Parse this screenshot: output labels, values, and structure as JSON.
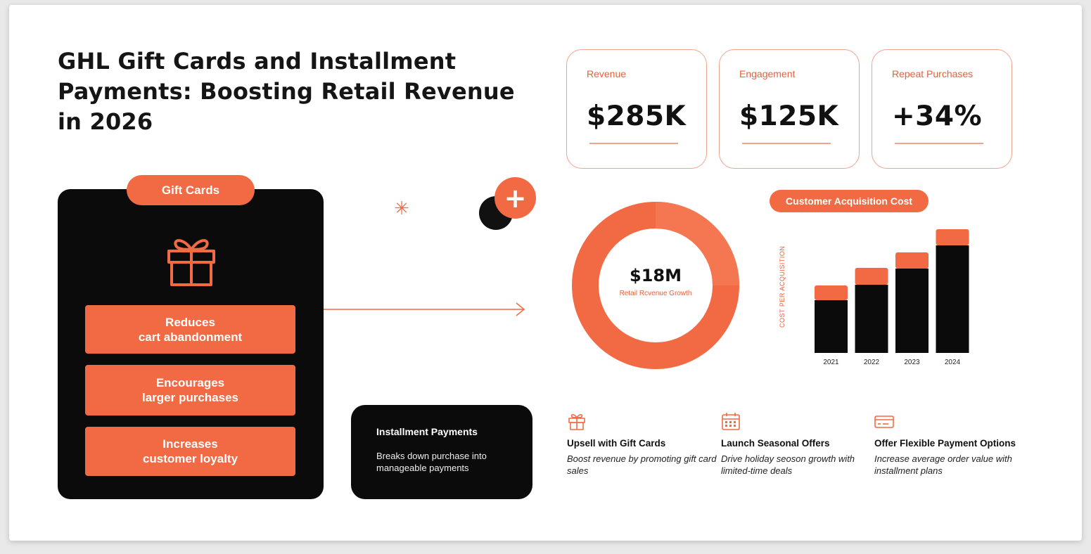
{
  "title": "GHL Gift Cards and Installment Payments: Boosting Retail Revenue in 2026",
  "gift_cards": {
    "label": "Gift Cards",
    "icon": "gift-icon",
    "benefits": [
      "Reduces\ncart abandonment",
      "Encourages\nlarger purchases",
      "Increases\ncustomer loyalty"
    ]
  },
  "decor": {
    "asterisk": "✳",
    "plus": "+"
  },
  "installment": {
    "title": "Installment Payments",
    "description": "Breaks down purchase into manageable payments"
  },
  "kpis": [
    {
      "label": "Revenue",
      "value": "$285K"
    },
    {
      "label": "Engagement",
      "value": "$125K"
    },
    {
      "label": "Repeat Purchases",
      "value": "+34%"
    }
  ],
  "donut": {
    "value": "$18M",
    "label": "Retail Rcvenue Growth"
  },
  "chart_data": {
    "type": "bar",
    "title": "Customer Acquisition Cost",
    "ylabel": "COST PER ACQUISITION",
    "categories": [
      "2021",
      "2022",
      "2023",
      "2024"
    ],
    "series": [
      {
        "values": [
          75,
          97,
          120,
          153
        ]
      },
      {
        "values": [
          21,
          24,
          23,
          23
        ]
      }
    ],
    "stacked": true,
    "colors": [
      "#0b0b0b",
      "#f26a44"
    ],
    "ylim": [
      0,
      176
    ]
  },
  "tips": [
    {
      "icon": "gift-icon",
      "title": "Upsell with Gift Cards",
      "description": "Boost revenue by promoting gift card sales"
    },
    {
      "icon": "calendar-icon",
      "title": "Launch Seasonal Offers",
      "description": "Drive holiday seoson growth with limited-time deals"
    },
    {
      "icon": "credit-card-icon",
      "title": "Offer Flexible Payment Options",
      "description": "Increase average order value with installment plans"
    }
  ],
  "colors": {
    "accent": "#f26a44",
    "dark": "#0b0b0b"
  }
}
